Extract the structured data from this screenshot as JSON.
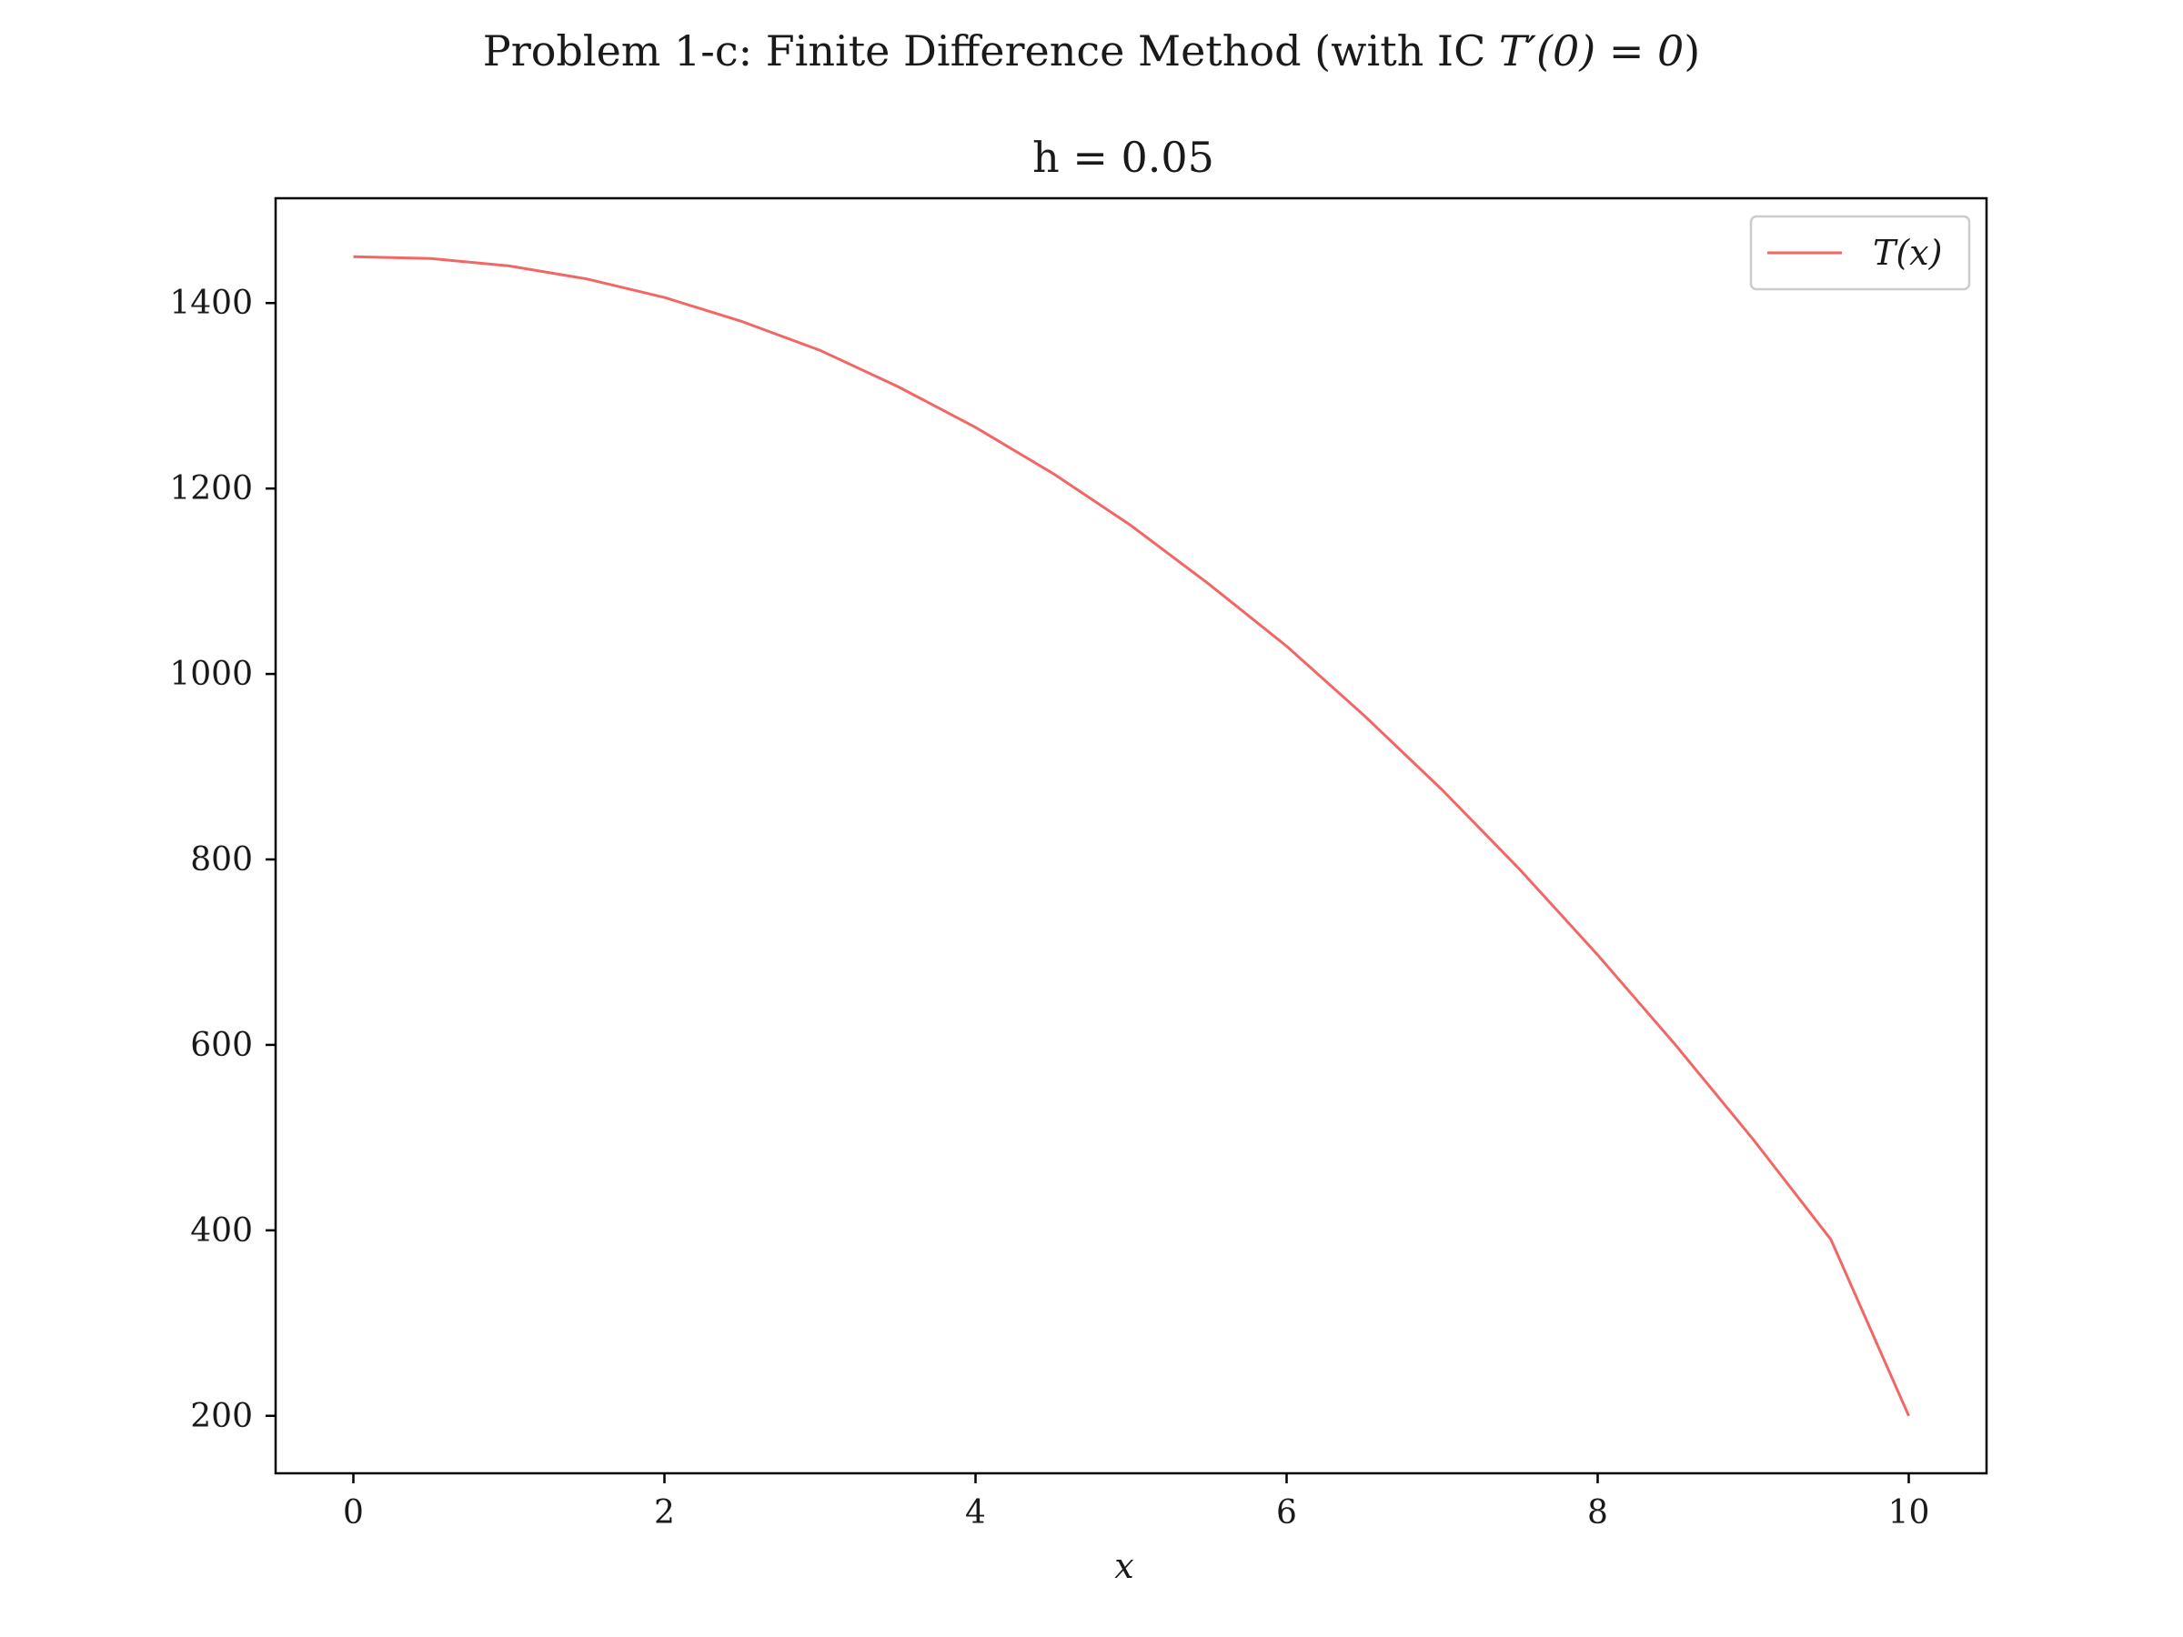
{
  "figure": {
    "suptitle_prefix": "Problem 1-c: Finite Difference Method (with IC ",
    "suptitle_math": "T′(0) = 0",
    "suptitle_suffix": ")"
  },
  "chart_data": {
    "type": "line",
    "title": "h = 0.05",
    "xlabel": "x",
    "ylabel": "",
    "xlim": [
      -0.5,
      10.5
    ],
    "ylim": [
      138,
      1513
    ],
    "xticks": [
      0,
      2,
      4,
      6,
      8,
      10
    ],
    "yticks": [
      200,
      400,
      600,
      800,
      1000,
      1200,
      1400
    ],
    "grid": false,
    "legend_position": "top-right",
    "series": [
      {
        "name": "T(x)",
        "color": "#f36666",
        "x": [
          0,
          0.5,
          1,
          1.5,
          2,
          2.5,
          3,
          3.5,
          4,
          4.5,
          5,
          5.5,
          6,
          6.5,
          7,
          7.5,
          8,
          8.5,
          9,
          9.5,
          10
        ],
        "y": [
          1450,
          1448,
          1440,
          1426,
          1406,
          1380,
          1349,
          1310,
          1266,
          1216,
          1160,
          1097,
          1030,
          955,
          875,
          789,
          697,
          600,
          498,
          390,
          200
        ]
      }
    ]
  }
}
